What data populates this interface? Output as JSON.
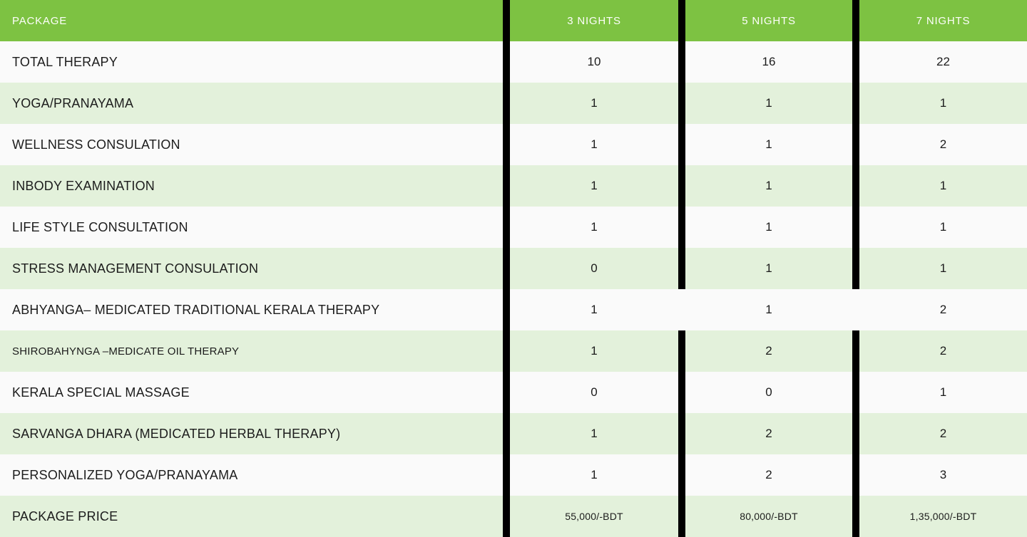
{
  "table": {
    "header": {
      "package_label": "PACKAGE",
      "columns": [
        "3 NIGHTS",
        "5 NIGHTS",
        "7 NIGHTS"
      ]
    },
    "rows": [
      {
        "label": "TOTAL THERAPY",
        "values": [
          "10",
          "16",
          "22"
        ]
      },
      {
        "label": "YOGA/PRANAYAMA",
        "values": [
          "1",
          "1",
          "1"
        ]
      },
      {
        "label": "WELLNESS CONSULATION",
        "values": [
          "1",
          "1",
          "2"
        ]
      },
      {
        "label": "INBODY EXAMINATION",
        "values": [
          "1",
          "1",
          "1"
        ]
      },
      {
        "label": "LIFE STYLE CONSULTATION",
        "values": [
          "1",
          "1",
          "1"
        ]
      },
      {
        "label": "STRESS MANAGEMENT CONSULATION",
        "values": [
          "0",
          "1",
          "1"
        ]
      },
      {
        "label": "ABHYANGA– MEDICATED TRADITIONAL KERALA THERAPY",
        "values": [
          "1",
          "1",
          "2"
        ]
      },
      {
        "label": "SHIROBAHYNGA –MEDICATE OIL THERAPY",
        "values": [
          "1",
          "2",
          "2"
        ]
      },
      {
        "label": "KERALA SPECIAL MASSAGE",
        "values": [
          "0",
          "0",
          "1"
        ]
      },
      {
        "label": "SARVANGA DHARA (MEDICATED HERBAL THERAPY)",
        "values": [
          "1",
          "2",
          "2"
        ]
      },
      {
        "label": "PERSONALIZED YOGA/PRANAYAMA",
        "values": [
          "1",
          "2",
          "3"
        ]
      },
      {
        "label": "PACKAGE PRICE",
        "values": [
          "55,000/-BDT",
          "80,000/-BDT",
          "1,35,000/-BDT"
        ]
      }
    ],
    "colors": {
      "header_green": "#7dc242",
      "row_green": "#e3f1db",
      "row_white": "#fafafa",
      "divider_black": "#000000",
      "header_text": "#fdfefb",
      "body_text": "#1c1c1c"
    }
  },
  "chart_data": {
    "type": "table",
    "title": "Wellness Package Comparison",
    "columns": [
      "PACKAGE",
      "3 NIGHTS",
      "5 NIGHTS",
      "7 NIGHTS"
    ],
    "rows": [
      [
        "TOTAL THERAPY",
        10,
        16,
        22
      ],
      [
        "YOGA/PRANAYAMA",
        1,
        1,
        1
      ],
      [
        "WELLNESS CONSULATION",
        1,
        1,
        2
      ],
      [
        "INBODY EXAMINATION",
        1,
        1,
        1
      ],
      [
        "LIFE STYLE CONSULTATION",
        1,
        1,
        1
      ],
      [
        "STRESS MANAGEMENT CONSULATION",
        0,
        1,
        1
      ],
      [
        "ABHYANGA– MEDICATED TRADITIONAL KERALA THERAPY",
        1,
        1,
        2
      ],
      [
        "SHIROBAHYNGA –MEDICATE OIL THERAPY",
        1,
        2,
        2
      ],
      [
        "KERALA SPECIAL MASSAGE",
        0,
        0,
        1
      ],
      [
        "SARVANGA DHARA (MEDICATED HERBAL THERAPY)",
        1,
        2,
        2
      ],
      [
        "PERSONALIZED YOGA/PRANAYAMA",
        1,
        2,
        3
      ],
      [
        "PACKAGE PRICE",
        "55,000/-BDT",
        "80,000/-BDT",
        "1,35,000/-BDT"
      ]
    ],
    "layout": {
      "header_background": "#7dc242",
      "alternating_row_colors": [
        "#fafafa",
        "#e3f1db"
      ],
      "column_dividers": "black vertical bars",
      "grid": false
    }
  }
}
